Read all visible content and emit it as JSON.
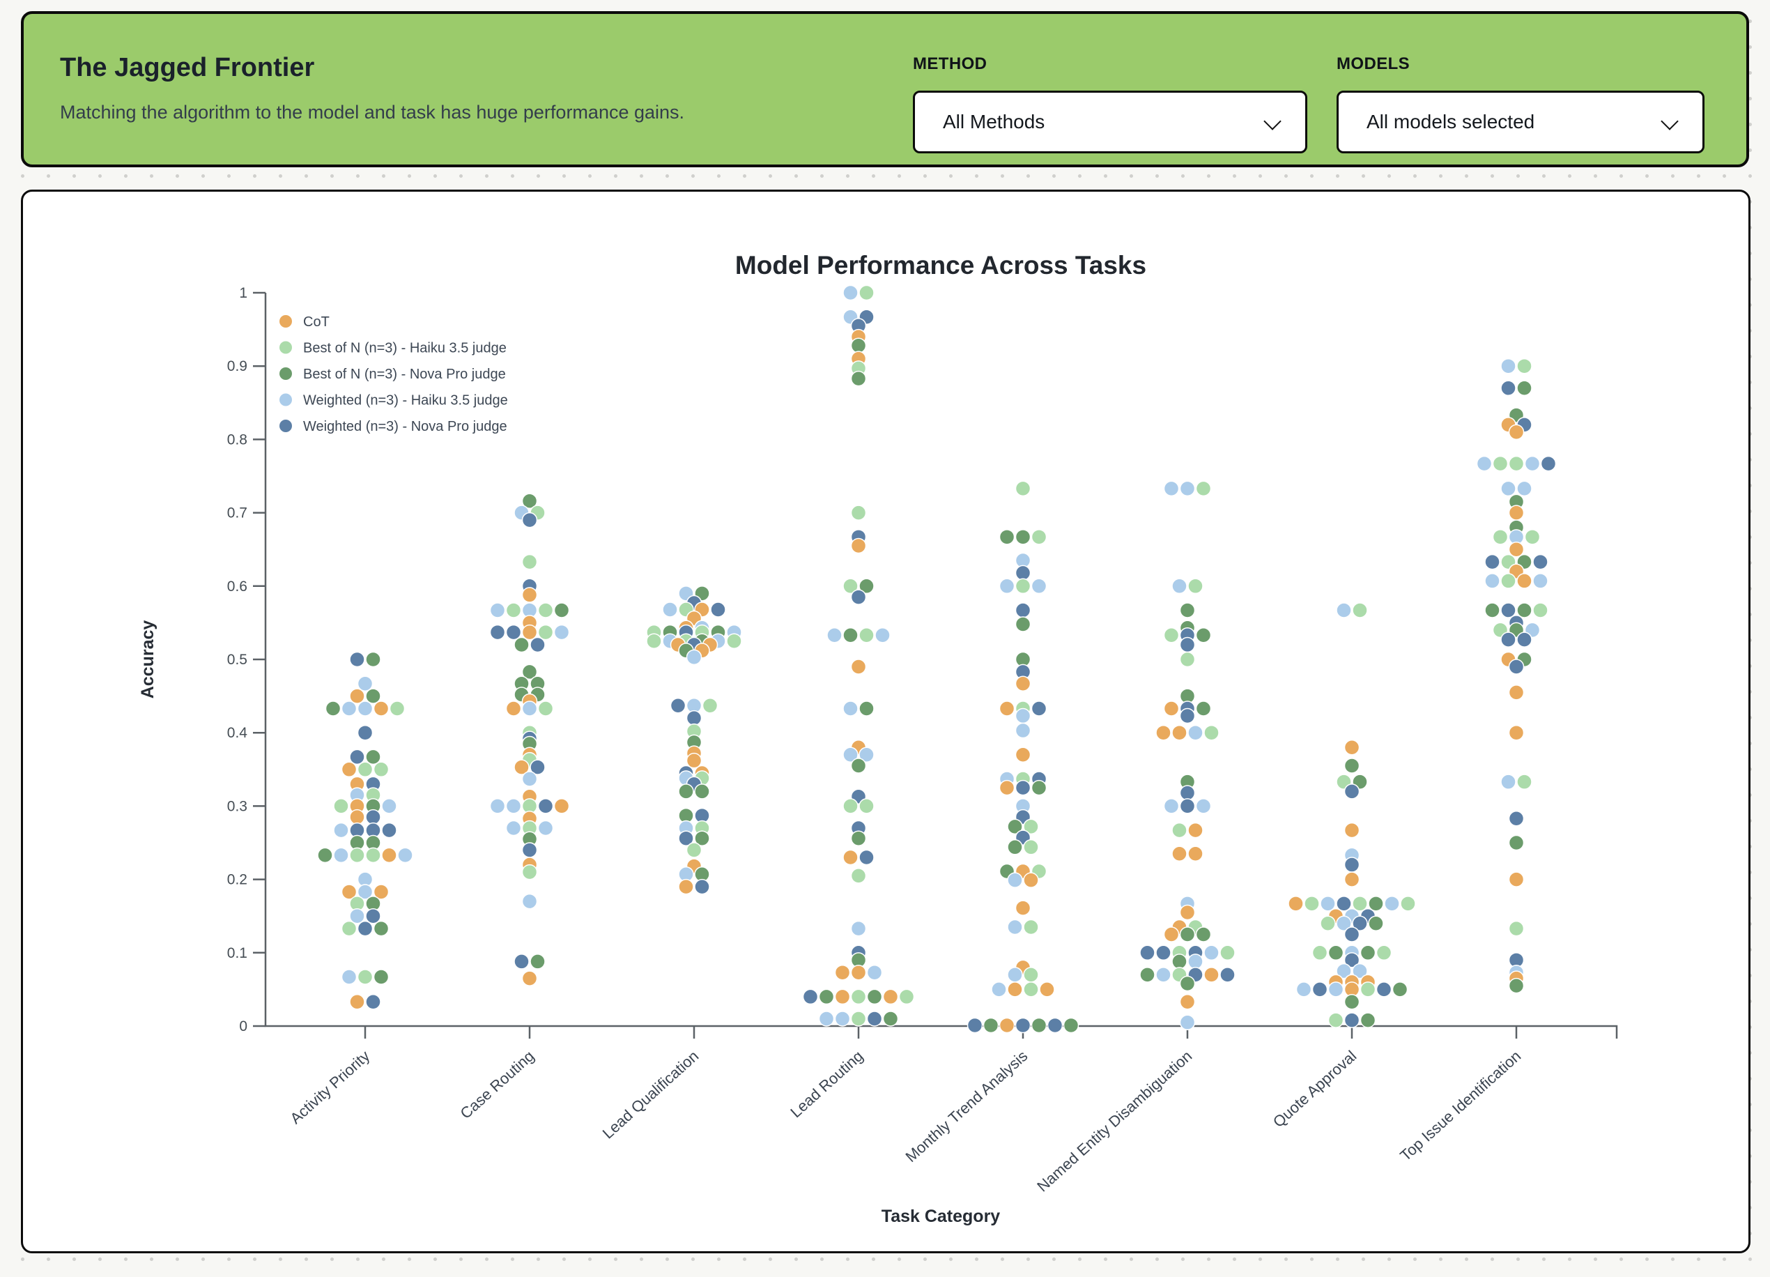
{
  "header": {
    "title": "The Jagged Frontier",
    "subtitle": "Matching the algorithm to the model and task has huge performance gains.",
    "bg_color": "#9bcb6b",
    "method": {
      "label": "METHOD",
      "value": "All Methods"
    },
    "models": {
      "label": "MODELS",
      "value": "All models selected"
    }
  },
  "chart_data": {
    "type": "scatter",
    "variant": "beeswarm",
    "title": "Model Performance Across Tasks",
    "xlabel": "Task Category",
    "ylabel": "Accuracy",
    "ylim": [
      0,
      1
    ],
    "grid": false,
    "legend_position": "top-left-inside",
    "yticks": [
      0,
      0.1,
      0.2,
      0.3,
      0.4,
      0.5,
      0.6,
      0.7,
      0.8,
      0.9,
      1
    ],
    "ytick_labels": [
      "0",
      "0.1",
      "0.2",
      "0.3",
      "0.4",
      "0.5",
      "0.6",
      "0.7",
      "0.8",
      "0.9",
      "1"
    ],
    "series": [
      {
        "key": "o",
        "name": "CoT",
        "color": "#e9a95c"
      },
      {
        "key": "g",
        "name": "Best of N (n=3) - Haiku 3.5 judge",
        "color": "#abdbaa"
      },
      {
        "key": "G",
        "name": "Best of N (n=3) - Nova Pro judge",
        "color": "#6b9c6b"
      },
      {
        "key": "b",
        "name": "Weighted (n=3) - Haiku 3.5 judge",
        "color": "#abccea"
      },
      {
        "key": "B",
        "name": "Weighted (n=3) - Nova Pro judge",
        "color": "#5c7fa6"
      }
    ],
    "categories": [
      "Activity Priority",
      "Case Routing",
      "Lead Qualification",
      "Lead Routing",
      "Monthly Trend Analysis",
      "Named Entity Disambiguation",
      "Quote Approval",
      "Top Issue Identification"
    ],
    "points": {
      "Activity Priority": [
        [
          0.5,
          "BG"
        ],
        [
          0.467,
          "b"
        ],
        [
          0.45,
          "oG"
        ],
        [
          0.433,
          "Gbbog"
        ],
        [
          0.4,
          "B"
        ],
        [
          0.367,
          "BG"
        ],
        [
          0.35,
          "ogg"
        ],
        [
          0.33,
          "oB"
        ],
        [
          0.315,
          "bg"
        ],
        [
          0.3,
          "goGb"
        ],
        [
          0.285,
          "oB"
        ],
        [
          0.267,
          "bBBB"
        ],
        [
          0.25,
          "GG"
        ],
        [
          0.233,
          "Gbggob"
        ],
        [
          0.2,
          "b"
        ],
        [
          0.183,
          "obo"
        ],
        [
          0.167,
          "gG"
        ],
        [
          0.15,
          "bB"
        ],
        [
          0.133,
          "gBG"
        ],
        [
          0.067,
          "bgG"
        ],
        [
          0.033,
          "oB"
        ]
      ],
      "Case Routing": [
        [
          0.716,
          "G"
        ],
        [
          0.7,
          "bg"
        ],
        [
          0.69,
          "B"
        ],
        [
          0.633,
          "g"
        ],
        [
          0.6,
          "B"
        ],
        [
          0.588,
          "o"
        ],
        [
          0.567,
          "bgbgG"
        ],
        [
          0.55,
          "o"
        ],
        [
          0.537,
          "BBogb"
        ],
        [
          0.52,
          "GB"
        ],
        [
          0.483,
          "G"
        ],
        [
          0.467,
          "GG"
        ],
        [
          0.452,
          "GG"
        ],
        [
          0.443,
          "o"
        ],
        [
          0.433,
          "obg"
        ],
        [
          0.4,
          "g"
        ],
        [
          0.392,
          "B"
        ],
        [
          0.385,
          "G"
        ],
        [
          0.37,
          "o"
        ],
        [
          0.363,
          "g"
        ],
        [
          0.353,
          "oB"
        ],
        [
          0.337,
          "b"
        ],
        [
          0.313,
          "o"
        ],
        [
          0.3,
          "bbgBo"
        ],
        [
          0.283,
          "o"
        ],
        [
          0.27,
          "bgb"
        ],
        [
          0.255,
          "G"
        ],
        [
          0.24,
          "B"
        ],
        [
          0.22,
          "o"
        ],
        [
          0.21,
          "g"
        ],
        [
          0.17,
          "b"
        ],
        [
          0.088,
          "BG"
        ],
        [
          0.065,
          "o"
        ]
      ],
      "Lead Qualification": [
        [
          0.59,
          "bG"
        ],
        [
          0.577,
          "B"
        ],
        [
          0.568,
          "bgoB"
        ],
        [
          0.556,
          "o"
        ],
        [
          0.543,
          "ob"
        ],
        [
          0.537,
          "gGBgGb"
        ],
        [
          0.525,
          "gbgGbg"
        ],
        [
          0.52,
          "oBo"
        ],
        [
          0.512,
          "Go"
        ],
        [
          0.503,
          "b"
        ],
        [
          0.437,
          "Bbg"
        ],
        [
          0.42,
          "B"
        ],
        [
          0.402,
          "g"
        ],
        [
          0.387,
          "G"
        ],
        [
          0.372,
          "o"
        ],
        [
          0.362,
          "o"
        ],
        [
          0.345,
          "Bo"
        ],
        [
          0.338,
          "bg"
        ],
        [
          0.33,
          "B"
        ],
        [
          0.32,
          "GG"
        ],
        [
          0.287,
          "GB"
        ],
        [
          0.27,
          "bg"
        ],
        [
          0.256,
          "BG"
        ],
        [
          0.24,
          "g"
        ],
        [
          0.218,
          "o"
        ],
        [
          0.207,
          "bG"
        ],
        [
          0.19,
          "oB"
        ]
      ],
      "Lead Routing": [
        [
          1.0,
          "bg"
        ],
        [
          0.967,
          "bB"
        ],
        [
          0.955,
          "B"
        ],
        [
          0.94,
          "o"
        ],
        [
          0.928,
          "G"
        ],
        [
          0.91,
          "o"
        ],
        [
          0.897,
          "g"
        ],
        [
          0.883,
          "G"
        ],
        [
          0.7,
          "g"
        ],
        [
          0.667,
          "B"
        ],
        [
          0.655,
          "o"
        ],
        [
          0.6,
          "gG"
        ],
        [
          0.585,
          "B"
        ],
        [
          0.533,
          "bGgb"
        ],
        [
          0.49,
          "o"
        ],
        [
          0.433,
          "bG"
        ],
        [
          0.38,
          "o"
        ],
        [
          0.37,
          "bb"
        ],
        [
          0.355,
          "G"
        ],
        [
          0.313,
          "B"
        ],
        [
          0.3,
          "gg"
        ],
        [
          0.27,
          "B"
        ],
        [
          0.256,
          "G"
        ],
        [
          0.23,
          "oB"
        ],
        [
          0.205,
          "g"
        ],
        [
          0.133,
          "b"
        ],
        [
          0.1,
          "B"
        ],
        [
          0.09,
          "G"
        ],
        [
          0.073,
          "oob"
        ],
        [
          0.04,
          "BGogGog"
        ],
        [
          0.01,
          "bbgBG"
        ]
      ],
      "Monthly Trend Analysis": [
        [
          0.733,
          "g"
        ],
        [
          0.667,
          "GGg"
        ],
        [
          0.635,
          "b"
        ],
        [
          0.618,
          "B"
        ],
        [
          0.6,
          "bgb"
        ],
        [
          0.567,
          "B"
        ],
        [
          0.548,
          "G"
        ],
        [
          0.5,
          "G"
        ],
        [
          0.483,
          "B"
        ],
        [
          0.467,
          "o"
        ],
        [
          0.433,
          "ogB"
        ],
        [
          0.423,
          "b"
        ],
        [
          0.403,
          "b"
        ],
        [
          0.37,
          "o"
        ],
        [
          0.337,
          "bgB"
        ],
        [
          0.325,
          "oBG"
        ],
        [
          0.3,
          "b"
        ],
        [
          0.285,
          "B"
        ],
        [
          0.272,
          "Gg"
        ],
        [
          0.257,
          "B"
        ],
        [
          0.244,
          "Gg"
        ],
        [
          0.211,
          "Gog"
        ],
        [
          0.199,
          "bo"
        ],
        [
          0.161,
          "o"
        ],
        [
          0.135,
          "bg"
        ],
        [
          0.08,
          "o"
        ],
        [
          0.07,
          "bg"
        ],
        [
          0.05,
          "bogo"
        ],
        [
          0.001,
          "BGoBGBG"
        ]
      ],
      "Named Entity Disambiguation": [
        [
          0.733,
          "bbg"
        ],
        [
          0.6,
          "bg"
        ],
        [
          0.567,
          "G"
        ],
        [
          0.543,
          "G"
        ],
        [
          0.533,
          "gBG"
        ],
        [
          0.52,
          "B"
        ],
        [
          0.5,
          "g"
        ],
        [
          0.45,
          "G"
        ],
        [
          0.433,
          "oBG"
        ],
        [
          0.423,
          "B"
        ],
        [
          0.4,
          "oobg"
        ],
        [
          0.333,
          "G"
        ],
        [
          0.318,
          "B"
        ],
        [
          0.3,
          "bBb"
        ],
        [
          0.267,
          "go"
        ],
        [
          0.235,
          "oo"
        ],
        [
          0.167,
          "b"
        ],
        [
          0.155,
          "o"
        ],
        [
          0.135,
          "og"
        ],
        [
          0.125,
          "oGG"
        ],
        [
          0.1,
          "BBgBbg"
        ],
        [
          0.088,
          "Gb"
        ],
        [
          0.07,
          "GbgBoB"
        ],
        [
          0.058,
          "G"
        ],
        [
          0.033,
          "o"
        ],
        [
          0.005,
          "b"
        ]
      ],
      "Quote Approval": [
        [
          0.567,
          "bg"
        ],
        [
          0.38,
          "o"
        ],
        [
          0.355,
          "G"
        ],
        [
          0.333,
          "gG"
        ],
        [
          0.32,
          "B"
        ],
        [
          0.267,
          "o"
        ],
        [
          0.233,
          "b"
        ],
        [
          0.22,
          "B"
        ],
        [
          0.2,
          "o"
        ],
        [
          0.167,
          "ogbBgGbg"
        ],
        [
          0.15,
          "obB"
        ],
        [
          0.14,
          "gbBG"
        ],
        [
          0.125,
          "B"
        ],
        [
          0.1,
          "gGbGg"
        ],
        [
          0.09,
          "B"
        ],
        [
          0.075,
          "bb"
        ],
        [
          0.06,
          "ooo"
        ],
        [
          0.05,
          "bBbogBG"
        ],
        [
          0.033,
          "G"
        ],
        [
          0.008,
          "gBG"
        ]
      ],
      "Top Issue Identification": [
        [
          0.9,
          "bg"
        ],
        [
          0.87,
          "BG"
        ],
        [
          0.833,
          "G"
        ],
        [
          0.82,
          "oB"
        ],
        [
          0.81,
          "o"
        ],
        [
          0.767,
          "bggbB"
        ],
        [
          0.733,
          "bb"
        ],
        [
          0.715,
          "G"
        ],
        [
          0.7,
          "o"
        ],
        [
          0.68,
          "G"
        ],
        [
          0.667,
          "gbg"
        ],
        [
          0.65,
          "o"
        ],
        [
          0.633,
          "BgGB"
        ],
        [
          0.62,
          "o"
        ],
        [
          0.607,
          "bgob"
        ],
        [
          0.567,
          "GBGg"
        ],
        [
          0.55,
          "B"
        ],
        [
          0.54,
          "gGb"
        ],
        [
          0.527,
          "BB"
        ],
        [
          0.5,
          "oG"
        ],
        [
          0.49,
          "B"
        ],
        [
          0.455,
          "o"
        ],
        [
          0.4,
          "o"
        ],
        [
          0.333,
          "bg"
        ],
        [
          0.283,
          "B"
        ],
        [
          0.25,
          "G"
        ],
        [
          0.2,
          "o"
        ],
        [
          0.133,
          "g"
        ],
        [
          0.09,
          "B"
        ],
        [
          0.073,
          "b"
        ],
        [
          0.065,
          "o"
        ],
        [
          0.055,
          "G"
        ]
      ]
    }
  }
}
